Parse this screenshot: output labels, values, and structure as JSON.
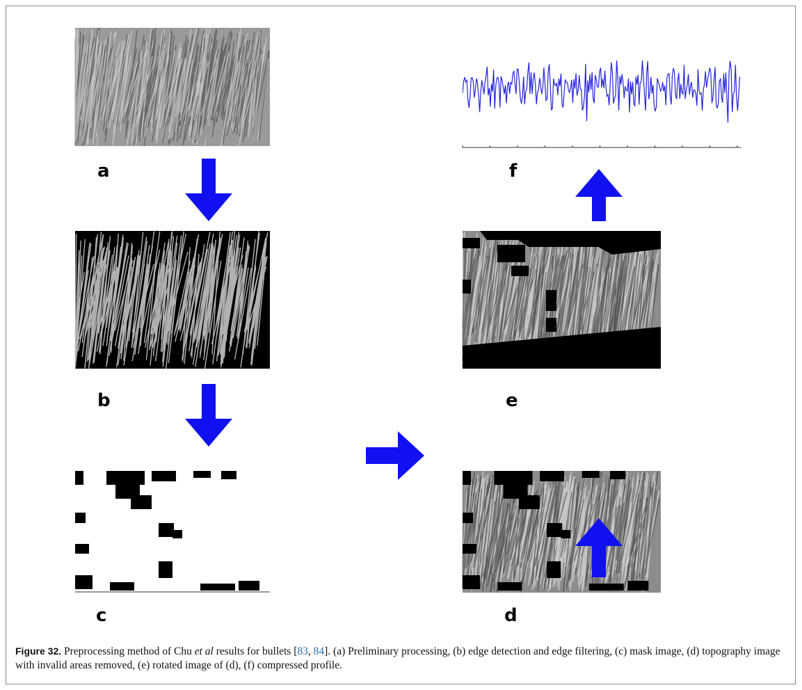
{
  "figure": {
    "panels": [
      {
        "label": "a"
      },
      {
        "label": "b"
      },
      {
        "label": "c"
      },
      {
        "label": "d"
      },
      {
        "label": "e"
      },
      {
        "label": "f"
      }
    ],
    "caption": {
      "number": "Figure 32.",
      "text_1": "Preprocessing method of Chu ",
      "italic": "et al",
      "text_2": " results for bullets [",
      "ref_1": "83",
      "sep": ", ",
      "ref_2": "84",
      "text_3": "]. (a) Preliminary processing, (b) edge detection and edge filtering, (c) mask image, (d) topography image with invalid areas removed, (e) rotated image of (d), (f) compressed profile."
    }
  }
}
